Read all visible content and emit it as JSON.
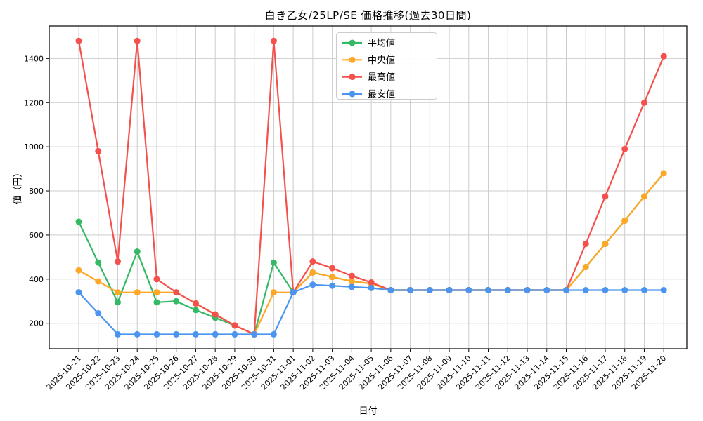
{
  "chart_data": {
    "type": "line",
    "title": "白き乙女/25LP/SE 価格推移(過去30日間)",
    "xlabel": "日付",
    "ylabel": "値（円）",
    "grid": true,
    "legend_position": "upper-center-inside",
    "ylim": [
      85,
      1545
    ],
    "yticks": [
      200,
      400,
      600,
      800,
      1000,
      1200,
      1400
    ],
    "colors": {
      "grid": "#cccccc",
      "spine": "#000000",
      "background": "#ffffff",
      "legend_border": "#cccccc"
    },
    "x": [
      "2025-10-21",
      "2025-10-22",
      "2025-10-23",
      "2025-10-24",
      "2025-10-25",
      "2025-10-26",
      "2025-10-27",
      "2025-10-28",
      "2025-10-29",
      "2025-10-30",
      "2025-10-31",
      "2025-11-01",
      "2025-11-02",
      "2025-11-03",
      "2025-11-04",
      "2025-11-05",
      "2025-11-06",
      "2025-11-07",
      "2025-11-08",
      "2025-11-09",
      "2025-11-10",
      "2025-11-11",
      "2025-11-12",
      "2025-11-13",
      "2025-11-14",
      "2025-11-15",
      "2025-11-16",
      "2025-11-17",
      "2025-11-18",
      "2025-11-19",
      "2025-11-20"
    ],
    "series": [
      {
        "key": "average",
        "name": "平均値",
        "color": "#35b965",
        "values": [
          660,
          475,
          295,
          525,
          295,
          300,
          260,
          225,
          190,
          150,
          475,
          340,
          430,
          410,
          390,
          380,
          350,
          350,
          350,
          350,
          350,
          350,
          350,
          350,
          350,
          350,
          455,
          560,
          665,
          775,
          880
        ]
      },
      {
        "key": "median",
        "name": "中央値",
        "color": "#ffa726",
        "values": [
          440,
          390,
          340,
          340,
          340,
          340,
          290,
          240,
          190,
          150,
          340,
          340,
          430,
          410,
          390,
          380,
          350,
          350,
          350,
          350,
          350,
          350,
          350,
          350,
          350,
          350,
          455,
          560,
          665,
          775,
          880
        ]
      },
      {
        "key": "highest",
        "name": "最高値",
        "color": "#f4514d",
        "values": [
          1480,
          980,
          480,
          1480,
          400,
          340,
          290,
          240,
          190,
          150,
          1480,
          340,
          480,
          450,
          415,
          385,
          350,
          350,
          350,
          350,
          350,
          350,
          350,
          350,
          350,
          350,
          560,
          775,
          990,
          1200,
          1410
        ]
      },
      {
        "key": "lowest",
        "name": "最安値",
        "color": "#4b94ef",
        "values": [
          340,
          245,
          150,
          150,
          150,
          150,
          150,
          150,
          150,
          150,
          150,
          340,
          375,
          370,
          365,
          360,
          350,
          350,
          350,
          350,
          350,
          350,
          350,
          350,
          350,
          350,
          350,
          350,
          350,
          350,
          350
        ]
      }
    ]
  }
}
